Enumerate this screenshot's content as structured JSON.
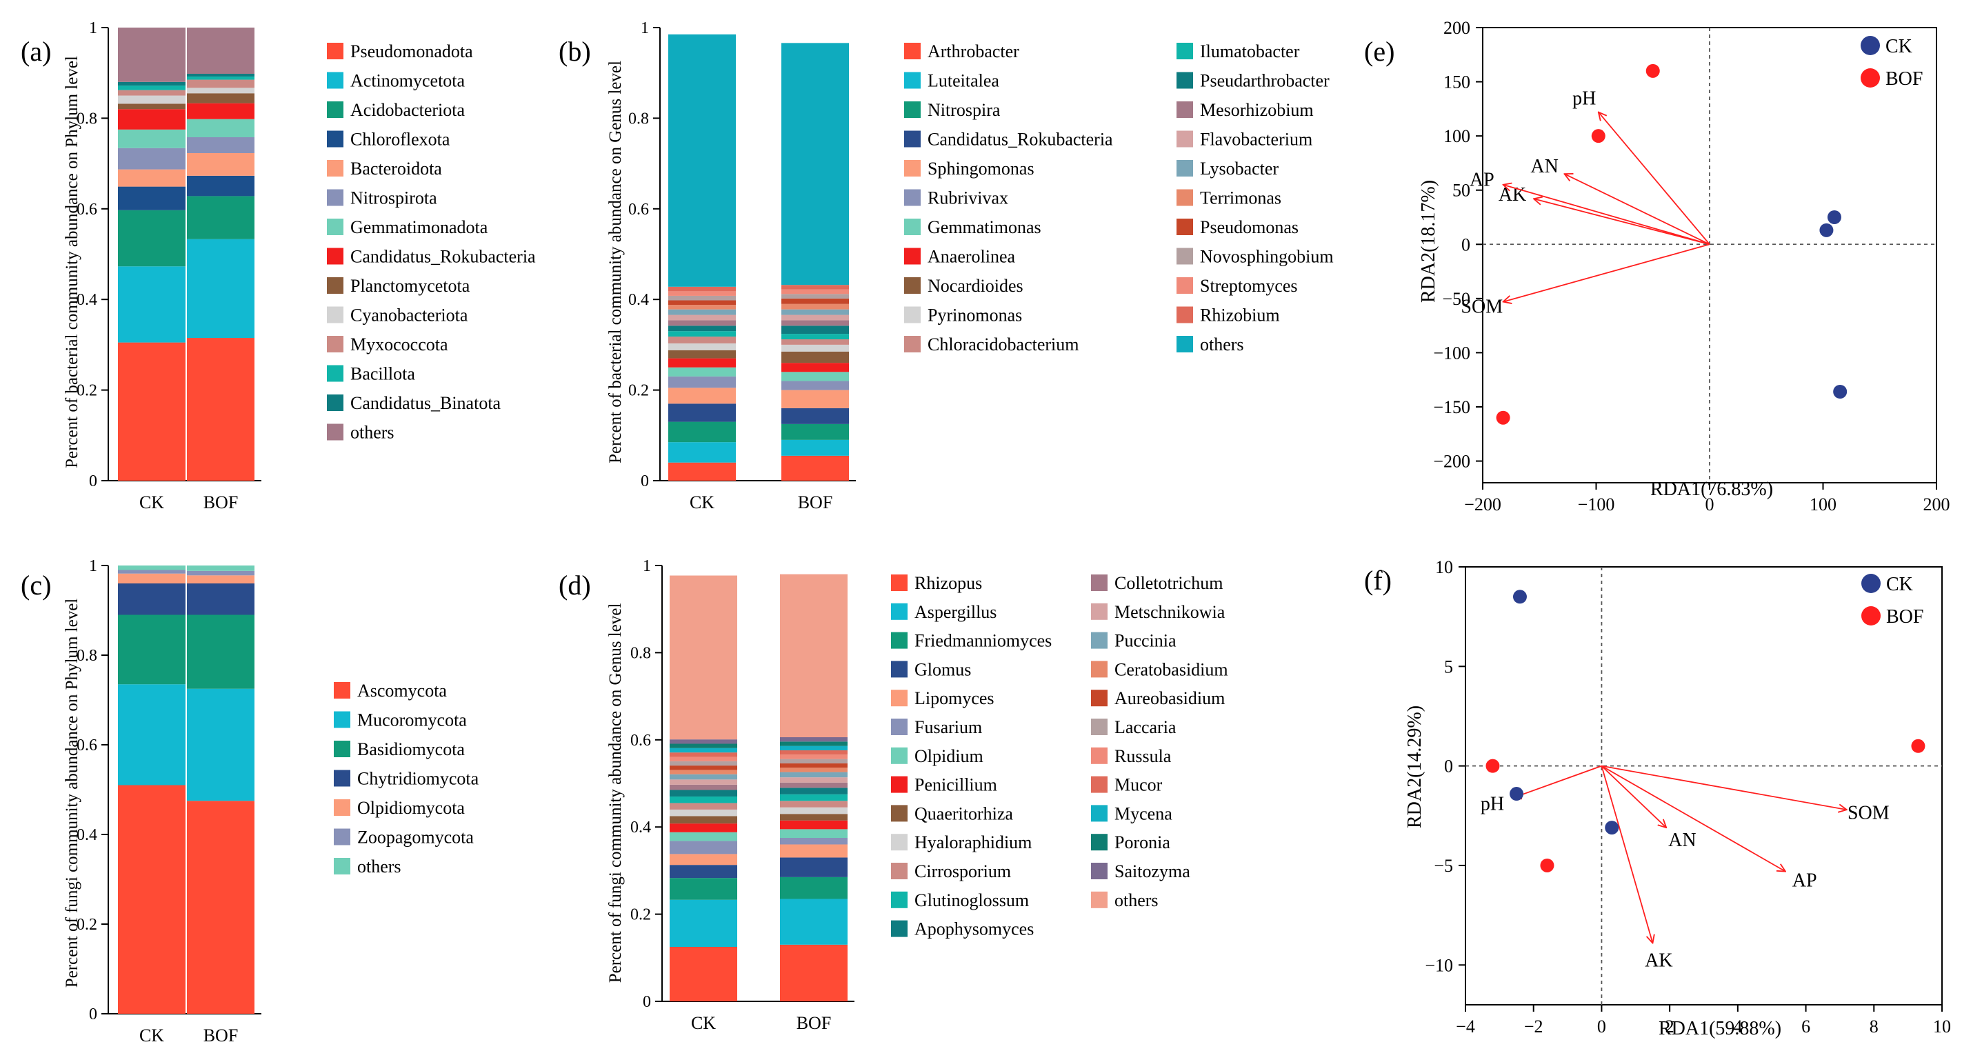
{
  "colors": {
    "axis": "#000000",
    "arrow": "#ff1f1f",
    "ck_point": "#2b3f8e",
    "bof_point": "#ff1f1f"
  },
  "chart_data": [
    {
      "id": "a",
      "type": "bar",
      "stacked": true,
      "panel_label": "(a)",
      "ylabel": "Percent of bacterial community abundance on Phylum level",
      "categories": [
        "CK",
        "BOF"
      ],
      "ylim": [
        0,
        1
      ],
      "yticks": [
        "0",
        "0.2",
        "0.4",
        "0.6",
        "0.8",
        "1"
      ],
      "legend_columns": 1,
      "series": [
        {
          "name": "Pseudomonadota",
          "color": "#ff4b35",
          "values": [
            0.305,
            0.315
          ]
        },
        {
          "name": "Actinomycetota",
          "color": "#12b9d1",
          "values": [
            0.168,
            0.218
          ]
        },
        {
          "name": "Acidobacteriota",
          "color": "#119a78",
          "values": [
            0.124,
            0.095
          ]
        },
        {
          "name": "Chloroflexota",
          "color": "#1c4f8c",
          "values": [
            0.052,
            0.045
          ]
        },
        {
          "name": "Bacteroidota",
          "color": "#fb9c7a",
          "values": [
            0.038,
            0.05
          ]
        },
        {
          "name": "Nitrospirota",
          "color": "#8891b8",
          "values": [
            0.047,
            0.035
          ]
        },
        {
          "name": "Gemmatimonadota",
          "color": "#6fcfb7",
          "values": [
            0.041,
            0.04
          ]
        },
        {
          "name": "Candidatus_Rokubacteria",
          "color": "#f21e1e",
          "values": [
            0.045,
            0.035
          ]
        },
        {
          "name": "Planctomycetota",
          "color": "#8a5c3b",
          "values": [
            0.012,
            0.022
          ]
        },
        {
          "name": "Cyanobacteriota",
          "color": "#d3d3d3",
          "values": [
            0.018,
            0.012
          ]
        },
        {
          "name": "Myxococcota",
          "color": "#cc8a84",
          "values": [
            0.012,
            0.018
          ]
        },
        {
          "name": "Bacillota",
          "color": "#10b5a9",
          "values": [
            0.01,
            0.007
          ]
        },
        {
          "name": "Candidatus_Binatota",
          "color": "#0e7c80",
          "values": [
            0.008,
            0.006
          ]
        },
        {
          "name": "others",
          "color": "#a47887",
          "values": [
            0.12,
            0.102
          ]
        }
      ]
    },
    {
      "id": "b",
      "type": "bar",
      "stacked": true,
      "panel_label": "(b)",
      "ylabel": "Percent of bacterial community abundance on Genus level",
      "categories": [
        "CK",
        "BOF"
      ],
      "ylim": [
        0,
        1
      ],
      "yticks": [
        "0",
        "0.2",
        "0.4",
        "0.6",
        "0.8",
        "1"
      ],
      "legend_columns": 2,
      "series": [
        {
          "name": "Arthrobacter",
          "color": "#ff4b35",
          "values": [
            0.04,
            0.055
          ]
        },
        {
          "name": "Luteitalea",
          "color": "#12b9d1",
          "values": [
            0.045,
            0.035
          ]
        },
        {
          "name": "Nitrospira",
          "color": "#119a78",
          "values": [
            0.045,
            0.035
          ]
        },
        {
          "name": "Candidatus_Rokubacteria",
          "color": "#2a4c8c",
          "values": [
            0.04,
            0.035
          ]
        },
        {
          "name": "Sphingomonas",
          "color": "#fb9c7a",
          "values": [
            0.035,
            0.04
          ]
        },
        {
          "name": "Rubrivivax",
          "color": "#8891b8",
          "values": [
            0.025,
            0.02
          ]
        },
        {
          "name": "Gemmatimonas",
          "color": "#6fcfb7",
          "values": [
            0.02,
            0.02
          ]
        },
        {
          "name": "Anaerolinea",
          "color": "#f21e1e",
          "values": [
            0.02,
            0.02
          ]
        },
        {
          "name": "Nocardioides",
          "color": "#8a5c3b",
          "values": [
            0.018,
            0.025
          ]
        },
        {
          "name": "Pyrinomonas",
          "color": "#d3d3d3",
          "values": [
            0.015,
            0.015
          ]
        },
        {
          "name": "Chloracidobacterium",
          "color": "#cc8a84",
          "values": [
            0.015,
            0.012
          ]
        },
        {
          "name": "Ilumatobacter",
          "color": "#10b5a9",
          "values": [
            0.012,
            0.012
          ]
        },
        {
          "name": "Pseudarthrobacter",
          "color": "#0e7c80",
          "values": [
            0.012,
            0.018
          ]
        },
        {
          "name": "Mesorhizobium",
          "color": "#a47887",
          "values": [
            0.012,
            0.012
          ]
        },
        {
          "name": "Flavobacterium",
          "color": "#d6a3a3",
          "values": [
            0.012,
            0.012
          ]
        },
        {
          "name": "Lysobacter",
          "color": "#7aa6b8",
          "values": [
            0.012,
            0.012
          ]
        },
        {
          "name": "Terrimonas",
          "color": "#e8896a",
          "values": [
            0.01,
            0.012
          ]
        },
        {
          "name": "Pseudomonas",
          "color": "#c64628",
          "values": [
            0.01,
            0.012
          ]
        },
        {
          "name": "Novosphingobium",
          "color": "#b3a0a0",
          "values": [
            0.01,
            0.01
          ]
        },
        {
          "name": "Streptomyces",
          "color": "#f08a7a",
          "values": [
            0.01,
            0.01
          ]
        },
        {
          "name": "Rhizobium",
          "color": "#e06a5a",
          "values": [
            0.01,
            0.01
          ]
        },
        {
          "name": "others",
          "color": "#0fabbe",
          "values": [
            0.557,
            0.534
          ]
        }
      ]
    },
    {
      "id": "c",
      "type": "bar",
      "stacked": true,
      "panel_label": "(c)",
      "ylabel": "Percent of fungi community abundance on Phylum level",
      "categories": [
        "CK",
        "BOF"
      ],
      "ylim": [
        0,
        1
      ],
      "yticks": [
        "0",
        "0.2",
        "0.4",
        "0.6",
        "0.8",
        "1"
      ],
      "legend_columns": 1,
      "series": [
        {
          "name": "Ascomycota",
          "color": "#ff4b35",
          "values": [
            0.51,
            0.475
          ]
        },
        {
          "name": "Mucoromycota",
          "color": "#12b9d1",
          "values": [
            0.225,
            0.25
          ]
        },
        {
          "name": "Basidiomycota",
          "color": "#119a78",
          "values": [
            0.155,
            0.165
          ]
        },
        {
          "name": "Chytridiomycota",
          "color": "#2a4c8c",
          "values": [
            0.07,
            0.07
          ]
        },
        {
          "name": "Olpidiomycota",
          "color": "#fb9c7a",
          "values": [
            0.022,
            0.018
          ]
        },
        {
          "name": "Zoopagomycota",
          "color": "#8891b8",
          "values": [
            0.008,
            0.01
          ]
        },
        {
          "name": "others",
          "color": "#6fcfb7",
          "values": [
            0.01,
            0.012
          ]
        }
      ]
    },
    {
      "id": "d",
      "type": "bar",
      "stacked": true,
      "panel_label": "(d)",
      "ylabel": "Percent of fungi community abundance on Genus level",
      "categories": [
        "CK",
        "BOF"
      ],
      "ylim": [
        0,
        1
      ],
      "yticks": [
        "0",
        "0.2",
        "0.4",
        "0.6",
        "0.8",
        "1"
      ],
      "legend_columns": 2,
      "series": [
        {
          "name": "Rhizopus",
          "color": "#ff4b35",
          "values": [
            0.125,
            0.13
          ]
        },
        {
          "name": "Aspergillus",
          "color": "#12b9d1",
          "values": [
            0.108,
            0.105
          ]
        },
        {
          "name": "Friedmanniomyces",
          "color": "#119a78",
          "values": [
            0.05,
            0.05
          ]
        },
        {
          "name": "Glomus",
          "color": "#2a4c8c",
          "values": [
            0.03,
            0.045
          ]
        },
        {
          "name": "Lipomyces",
          "color": "#fb9c7a",
          "values": [
            0.025,
            0.03
          ]
        },
        {
          "name": "Fusarium",
          "color": "#8891b8",
          "values": [
            0.03,
            0.015
          ]
        },
        {
          "name": "Olpidium",
          "color": "#6fcfb7",
          "values": [
            0.02,
            0.02
          ]
        },
        {
          "name": "Penicillium",
          "color": "#f21e1e",
          "values": [
            0.02,
            0.02
          ]
        },
        {
          "name": "Quaeritorhiza",
          "color": "#8a5c3b",
          "values": [
            0.017,
            0.015
          ]
        },
        {
          "name": "Hyaloraphidium",
          "color": "#d3d3d3",
          "values": [
            0.015,
            0.015
          ]
        },
        {
          "name": "Cirrosporium",
          "color": "#cc8a84",
          "values": [
            0.015,
            0.015
          ]
        },
        {
          "name": "Glutinoglossum",
          "color": "#10b5a9",
          "values": [
            0.015,
            0.015
          ]
        },
        {
          "name": "Apophysomyces",
          "color": "#0e7c80",
          "values": [
            0.015,
            0.015
          ]
        },
        {
          "name": "Colletotrichum",
          "color": "#a47887",
          "values": [
            0.012,
            0.012
          ]
        },
        {
          "name": "Metschnikowia",
          "color": "#d6a3a3",
          "values": [
            0.012,
            0.012
          ]
        },
        {
          "name": "Puccinia",
          "color": "#7aa6b8",
          "values": [
            0.012,
            0.012
          ]
        },
        {
          "name": "Ceratobasidium",
          "color": "#e8896a",
          "values": [
            0.01,
            0.01
          ]
        },
        {
          "name": "Aureobasidium",
          "color": "#c64628",
          "values": [
            0.01,
            0.01
          ]
        },
        {
          "name": "Laccaria",
          "color": "#b3a0a0",
          "values": [
            0.01,
            0.01
          ]
        },
        {
          "name": "Russula",
          "color": "#f08a7a",
          "values": [
            0.01,
            0.01
          ]
        },
        {
          "name": "Mucor",
          "color": "#e06a5a",
          "values": [
            0.01,
            0.01
          ]
        },
        {
          "name": "Mycena",
          "color": "#12b0c4",
          "values": [
            0.01,
            0.01
          ]
        },
        {
          "name": "Poronia",
          "color": "#0f7e72",
          "values": [
            0.01,
            0.01
          ]
        },
        {
          "name": "Saitozyma",
          "color": "#7a6a90",
          "values": [
            0.01,
            0.01
          ]
        },
        {
          "name": "others",
          "color": "#f2a08c",
          "values": [
            0.376,
            0.374
          ]
        }
      ]
    },
    {
      "id": "e",
      "type": "scatter",
      "panel_label": "(e)",
      "xlabel": "RDA1(76.83%)",
      "ylabel": "RDA2(18.17%)",
      "xlim": [
        -200,
        200
      ],
      "ylim": [
        -220,
        200
      ],
      "xticks": [
        -200,
        -100,
        0,
        100,
        200
      ],
      "yticks": [
        -200,
        -150,
        -100,
        -50,
        0,
        50,
        100,
        150,
        200
      ],
      "legend": [
        {
          "name": "CK",
          "color": "#2b3f8e"
        },
        {
          "name": "BOF",
          "color": "#ff1f1f"
        }
      ],
      "points": [
        {
          "group": "CK",
          "x": 103,
          "y": 13
        },
        {
          "group": "CK",
          "x": 110,
          "y": 25
        },
        {
          "group": "CK",
          "x": 115,
          "y": -136
        },
        {
          "group": "BOF",
          "x": -50,
          "y": 160
        },
        {
          "group": "BOF",
          "x": -98,
          "y": 100
        },
        {
          "group": "BOF",
          "x": -182,
          "y": -160
        }
      ],
      "vectors": [
        {
          "label": "pH",
          "x": -98,
          "y": 122
        },
        {
          "label": "AN",
          "x": -128,
          "y": 65
        },
        {
          "label": "AK",
          "x": -155,
          "y": 42
        },
        {
          "label": "AP",
          "x": -182,
          "y": 55
        },
        {
          "label": "SOM",
          "x": -182,
          "y": -53
        }
      ]
    },
    {
      "id": "f",
      "type": "scatter",
      "panel_label": "(f)",
      "xlabel": "RDA1(59.88%)",
      "ylabel": "RDA2(14.29%)",
      "xlim": [
        -4,
        10
      ],
      "ylim": [
        -12,
        10
      ],
      "xticks": [
        -4,
        -2,
        0,
        2,
        4,
        6,
        8,
        10
      ],
      "yticks": [
        -10,
        -5,
        0,
        5,
        10
      ],
      "legend": [
        {
          "name": "CK",
          "color": "#2b3f8e"
        },
        {
          "name": "BOF",
          "color": "#ff1f1f"
        }
      ],
      "points": [
        {
          "group": "CK",
          "x": -2.4,
          "y": 8.5
        },
        {
          "group": "CK",
          "x": -2.5,
          "y": -1.4
        },
        {
          "group": "CK",
          "x": 0.3,
          "y": -3.1
        },
        {
          "group": "BOF",
          "x": -3.2,
          "y": 0.0
        },
        {
          "group": "BOF",
          "x": -1.6,
          "y": -5.0
        },
        {
          "group": "BOF",
          "x": 9.3,
          "y": 1.0
        }
      ],
      "vectors": [
        {
          "label": "pH",
          "x": -2.6,
          "y": -1.6
        },
        {
          "label": "AN",
          "x": 1.9,
          "y": -3.1
        },
        {
          "label": "SOM",
          "x": 7.2,
          "y": -2.2
        },
        {
          "label": "AP",
          "x": 5.4,
          "y": -5.3
        },
        {
          "label": "AK",
          "x": 1.5,
          "y": -8.9
        }
      ]
    }
  ]
}
